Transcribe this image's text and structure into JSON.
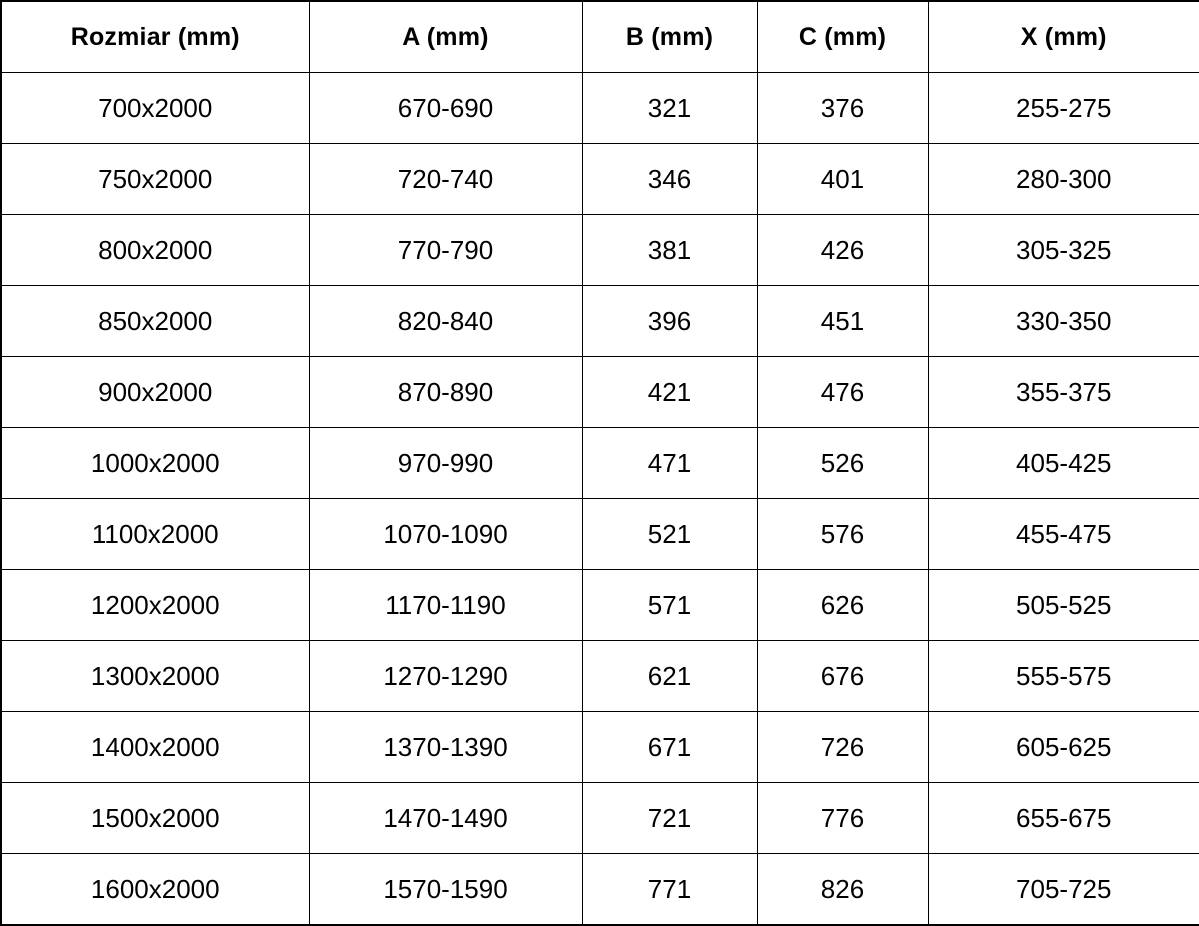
{
  "colors": {
    "background": "#ffffff",
    "border": "#000000",
    "text": "#000000"
  },
  "table": {
    "columns": [
      "Rozmiar (mm)",
      "A (mm)",
      "B (mm)",
      "C (mm)",
      "X (mm)"
    ],
    "rows": [
      [
        "700x2000",
        "670-690",
        "321",
        "376",
        "255-275"
      ],
      [
        "750x2000",
        "720-740",
        "346",
        "401",
        "280-300"
      ],
      [
        "800x2000",
        "770-790",
        "381",
        "426",
        "305-325"
      ],
      [
        "850x2000",
        "820-840",
        "396",
        "451",
        "330-350"
      ],
      [
        "900x2000",
        "870-890",
        "421",
        "476",
        "355-375"
      ],
      [
        "1000x2000",
        "970-990",
        "471",
        "526",
        "405-425"
      ],
      [
        "1100x2000",
        "1070-1090",
        "521",
        "576",
        "455-475"
      ],
      [
        "1200x2000",
        "1170-1190",
        "571",
        "626",
        "505-525"
      ],
      [
        "1300x2000",
        "1270-1290",
        "621",
        "676",
        "555-575"
      ],
      [
        "1400x2000",
        "1370-1390",
        "671",
        "726",
        "605-625"
      ],
      [
        "1500x2000",
        "1470-1490",
        "721",
        "776",
        "655-675"
      ],
      [
        "1600x2000",
        "1570-1590",
        "771",
        "826",
        "705-725"
      ]
    ]
  }
}
